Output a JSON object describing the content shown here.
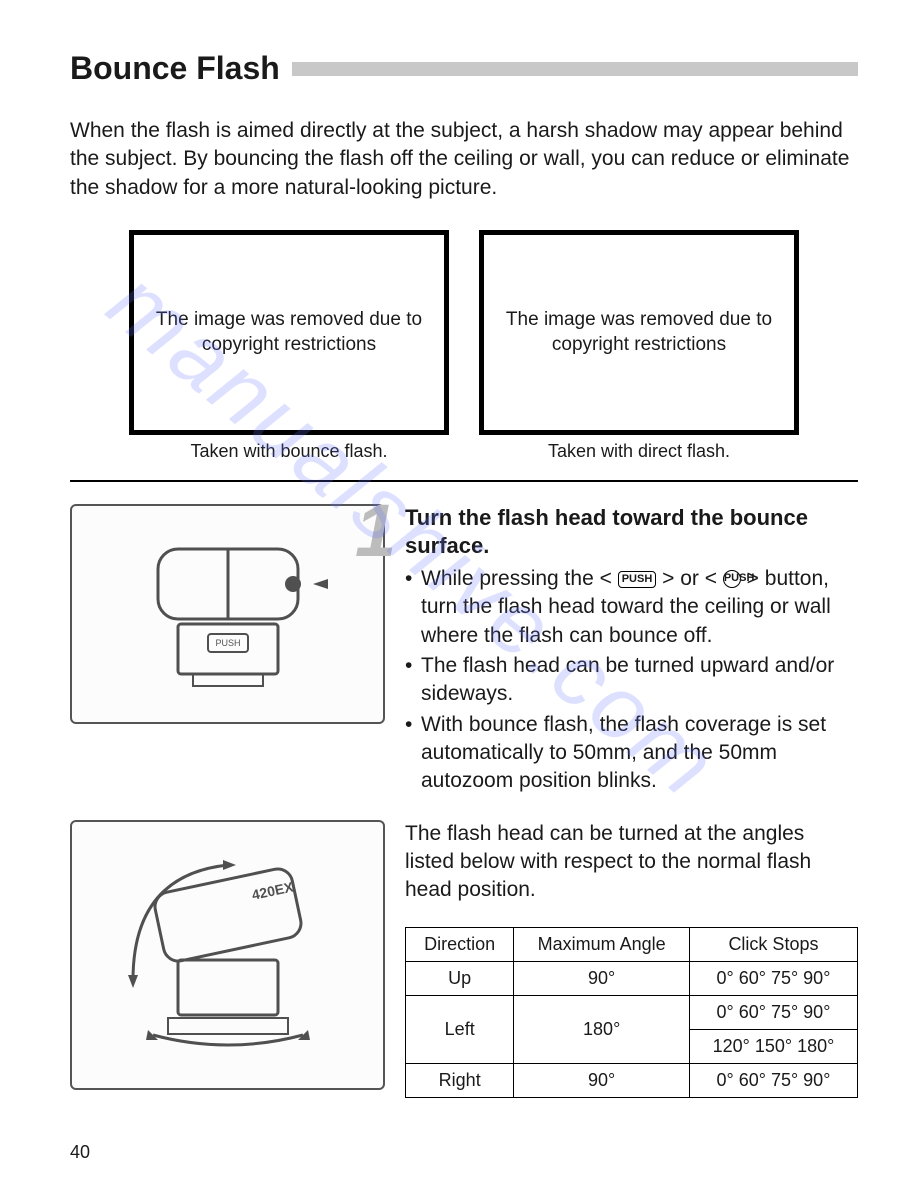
{
  "page": {
    "title": "Bounce Flash",
    "number": "40",
    "watermark": "manualshive.com"
  },
  "intro": "When the flash is aimed directly at the subject, a harsh shadow may appear behind the subject. By bouncing the flash off the ceiling or wall, you can reduce or eliminate the shadow for a more natural-looking picture.",
  "imagebox": {
    "left_text": "The image was removed due to copyright restrictions",
    "right_text": "The image was removed due to copyright restrictions",
    "left_caption": "Taken with bounce flash.",
    "right_caption": "Taken with direct flash."
  },
  "step1": {
    "number": "1",
    "heading": "Turn the flash head toward the bounce surface.",
    "push_button_label": "PUSH",
    "push_button_small": "PUSH",
    "bullet1_pre": "While pressing the <",
    "bullet1_mid": "> or <",
    "bullet1_end": "> button, turn the flash head toward the ceiling or wall where the flash can bounce off.",
    "bullet2": "The flash head can be turned upward and/or sideways.",
    "bullet3": "With bounce flash, the flash coverage is set automatically to 50mm, and the 50mm autozoom position blinks."
  },
  "angle_section": {
    "intro": "The flash head can be turned at the angles listed below with respect to the normal flash head position.",
    "table": {
      "columns": [
        "Direction",
        "Maximum Angle",
        "Click Stops"
      ],
      "rows": [
        {
          "dir": "Up",
          "max": "90°",
          "stops": [
            "0°  60°  75°  90°"
          ],
          "stops_rowspan": 1,
          "dir_rowspan": 1,
          "max_rowspan": 1
        },
        {
          "dir": "Left",
          "max": "180°",
          "stops": [
            "0°  60°  75°  90°",
            "120°  150°  180°"
          ],
          "stops_rowspan": 1,
          "dir_rowspan": 2,
          "max_rowspan": 2
        },
        {
          "dir": "Right",
          "max": "90°",
          "stops": [
            "0°  60°  75°  90°"
          ],
          "stops_rowspan": 1,
          "dir_rowspan": 1,
          "max_rowspan": 1
        }
      ]
    }
  },
  "styling": {
    "title_fontsize": 32,
    "body_fontsize": 21,
    "caption_fontsize": 18,
    "table_fontsize": 18,
    "title_bar_color": "#c8c8c8",
    "step_number_color": "#bcbcbc",
    "border_color": "#000000",
    "watermark_color": "rgba(100,120,255,0.22)",
    "background_color": "#ffffff"
  }
}
